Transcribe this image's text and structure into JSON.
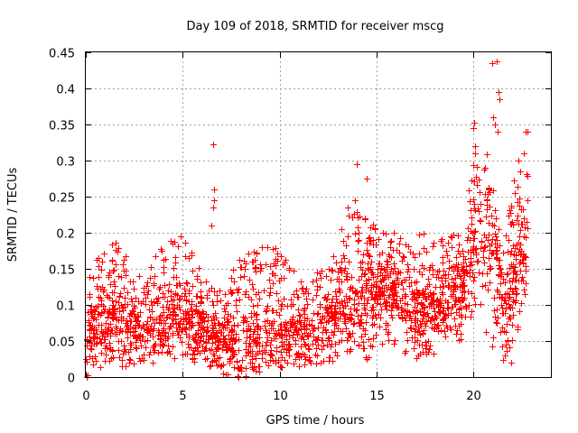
{
  "chart_data": {
    "type": "scatter",
    "title": "Day 109 of 2018, SRMTID for receiver mscg",
    "xlabel": "GPS time / hours",
    "ylabel": "SRMTID / TECUs",
    "xlim": [
      0,
      24
    ],
    "ylim": [
      0,
      0.45
    ],
    "xticks": [
      0,
      5,
      10,
      15,
      20
    ],
    "xtick_labels": [
      "0",
      "5",
      "10",
      "15",
      "20"
    ],
    "yticks": [
      0,
      0.05,
      0.1,
      0.15,
      0.2,
      0.25,
      0.3,
      0.35,
      0.4,
      0.45
    ],
    "ytick_labels": [
      "0",
      "0.05",
      "0.1",
      "0.15",
      "0.2",
      "0.25",
      "0.3",
      "0.35",
      "0.4",
      "0.45"
    ],
    "grid": true,
    "marker": "+",
    "color": "#ff0000",
    "x_end": 22.8,
    "envelope": [
      {
        "t": 0.0,
        "low": 0.0,
        "base": 0.07,
        "high": 0.14
      },
      {
        "t": 1.5,
        "low": 0.01,
        "base": 0.08,
        "high": 0.2
      },
      {
        "t": 3.0,
        "low": 0.02,
        "base": 0.06,
        "high": 0.14
      },
      {
        "t": 4.0,
        "low": 0.03,
        "base": 0.08,
        "high": 0.19
      },
      {
        "t": 5.0,
        "low": 0.02,
        "base": 0.08,
        "high": 0.2
      },
      {
        "t": 6.0,
        "low": 0.02,
        "base": 0.07,
        "high": 0.14
      },
      {
        "t": 7.0,
        "low": 0.0,
        "base": 0.05,
        "high": 0.12
      },
      {
        "t": 8.0,
        "low": 0.0,
        "base": 0.04,
        "high": 0.17
      },
      {
        "t": 9.5,
        "low": 0.01,
        "base": 0.06,
        "high": 0.19
      },
      {
        "t": 11.0,
        "low": 0.01,
        "base": 0.06,
        "high": 0.14
      },
      {
        "t": 12.5,
        "low": 0.02,
        "base": 0.08,
        "high": 0.15
      },
      {
        "t": 13.5,
        "low": 0.03,
        "base": 0.1,
        "high": 0.24
      },
      {
        "t": 14.5,
        "low": 0.02,
        "base": 0.12,
        "high": 0.22
      },
      {
        "t": 15.5,
        "low": 0.05,
        "base": 0.13,
        "high": 0.2
      },
      {
        "t": 17.0,
        "low": 0.02,
        "base": 0.08,
        "high": 0.2
      },
      {
        "t": 18.5,
        "low": 0.04,
        "base": 0.11,
        "high": 0.2
      },
      {
        "t": 19.5,
        "low": 0.05,
        "base": 0.12,
        "high": 0.2
      },
      {
        "t": 20.0,
        "low": 0.1,
        "base": 0.2,
        "high": 0.33
      },
      {
        "t": 20.8,
        "low": 0.04,
        "base": 0.22,
        "high": 0.32
      },
      {
        "t": 21.5,
        "low": 0.02,
        "base": 0.1,
        "high": 0.17
      },
      {
        "t": 22.0,
        "low": 0.02,
        "base": 0.12,
        "high": 0.27
      },
      {
        "t": 22.8,
        "low": 0.1,
        "base": 0.2,
        "high": 0.32
      }
    ],
    "notable_points": [
      {
        "x": 6.55,
        "y": 0.322
      },
      {
        "x": 6.6,
        "y": 0.26
      },
      {
        "x": 6.62,
        "y": 0.245
      },
      {
        "x": 6.58,
        "y": 0.235
      },
      {
        "x": 6.5,
        "y": 0.21
      },
      {
        "x": 14.0,
        "y": 0.295
      },
      {
        "x": 14.5,
        "y": 0.275
      },
      {
        "x": 13.9,
        "y": 0.245
      },
      {
        "x": 20.05,
        "y": 0.352
      },
      {
        "x": 20.0,
        "y": 0.345
      },
      {
        "x": 20.1,
        "y": 0.32
      },
      {
        "x": 20.95,
        "y": 0.435
      },
      {
        "x": 21.2,
        "y": 0.438
      },
      {
        "x": 21.3,
        "y": 0.395
      },
      {
        "x": 21.35,
        "y": 0.385
      },
      {
        "x": 21.0,
        "y": 0.36
      },
      {
        "x": 21.1,
        "y": 0.35
      },
      {
        "x": 21.25,
        "y": 0.34
      },
      {
        "x": 22.7,
        "y": 0.34
      },
      {
        "x": 22.8,
        "y": 0.34
      },
      {
        "x": 22.6,
        "y": 0.31
      },
      {
        "x": 22.3,
        "y": 0.3
      },
      {
        "x": 0.05,
        "y": 0.0
      },
      {
        "x": 0.1,
        "y": 0.002
      }
    ],
    "n_points": 2300,
    "seed": 109
  }
}
